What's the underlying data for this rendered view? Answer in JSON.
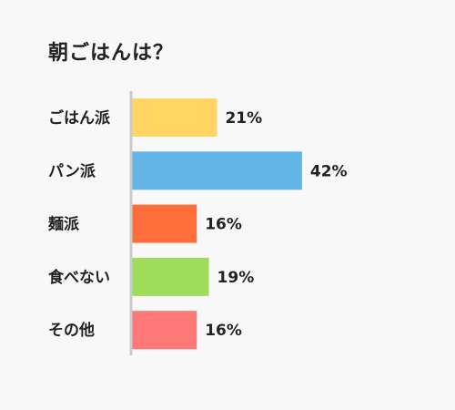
{
  "chart_data": {
    "type": "bar",
    "orientation": "horizontal",
    "title": "朝ごはんは？",
    "categories": [
      "ごはん派",
      "パン派",
      "麺派",
      "食べない",
      "その他"
    ],
    "values": [
      21,
      42,
      16,
      19,
      16
    ],
    "value_labels": [
      "21%",
      "42%",
      "16%",
      "19%",
      "16%"
    ],
    "unit": "%",
    "colors": [
      "#ffd563",
      "#63b5e5",
      "#ff6e3a",
      "#9edd5c",
      "#ff7878"
    ],
    "axis_color": "#cccccc",
    "grid": false,
    "legend": "none"
  }
}
